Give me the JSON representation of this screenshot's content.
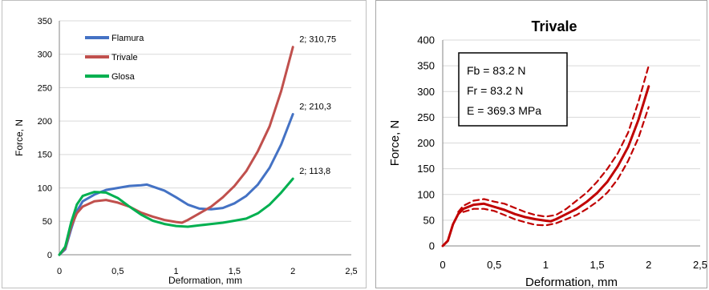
{
  "chart_data": [
    {
      "type": "line",
      "title": "",
      "xlabel": "Deformation, mm",
      "ylabel": "Force, N",
      "xlim": [
        0,
        2.5
      ],
      "ylim": [
        0,
        350
      ],
      "x_ticks": [
        "0",
        "0,5",
        "1",
        "1,5",
        "2",
        "2,5"
      ],
      "y_ticks": [
        "0",
        "50",
        "100",
        "150",
        "200",
        "250",
        "300",
        "350"
      ],
      "grid": "horizontal",
      "legend_position": "top-left",
      "series": [
        {
          "name": "Flamura",
          "color": "#4472c4",
          "points": [
            [
              0,
              0
            ],
            [
              0.05,
              8
            ],
            [
              0.1,
              38
            ],
            [
              0.15,
              65
            ],
            [
              0.2,
              80
            ],
            [
              0.3,
              90
            ],
            [
              0.4,
              97
            ],
            [
              0.5,
              100
            ],
            [
              0.6,
              103
            ],
            [
              0.7,
              104
            ],
            [
              0.75,
              105
            ],
            [
              0.8,
              102
            ],
            [
              0.9,
              96
            ],
            [
              1.0,
              86
            ],
            [
              1.1,
              75
            ],
            [
              1.2,
              69
            ],
            [
              1.3,
              68
            ],
            [
              1.4,
              70
            ],
            [
              1.5,
              77
            ],
            [
              1.6,
              88
            ],
            [
              1.7,
              105
            ],
            [
              1.8,
              130
            ],
            [
              1.9,
              165
            ],
            [
              2.0,
              210.3
            ]
          ],
          "end_label": "2; 210,3"
        },
        {
          "name": "Trivale",
          "color": "#c0504d",
          "points": [
            [
              0,
              0
            ],
            [
              0.05,
              10
            ],
            [
              0.1,
              42
            ],
            [
              0.15,
              62
            ],
            [
              0.2,
              72
            ],
            [
              0.3,
              80
            ],
            [
              0.4,
              82
            ],
            [
              0.5,
              78
            ],
            [
              0.6,
              72
            ],
            [
              0.7,
              63
            ],
            [
              0.8,
              57
            ],
            [
              0.9,
              52
            ],
            [
              1.0,
              49
            ],
            [
              1.05,
              48
            ],
            [
              1.1,
              52
            ],
            [
              1.2,
              62
            ],
            [
              1.3,
              72
            ],
            [
              1.4,
              86
            ],
            [
              1.5,
              103
            ],
            [
              1.6,
              125
            ],
            [
              1.7,
              155
            ],
            [
              1.8,
              192
            ],
            [
              1.9,
              245
            ],
            [
              2.0,
              310.75
            ]
          ],
          "end_label": "2; 310,75"
        },
        {
          "name": "Glosa",
          "color": "#00b050",
          "points": [
            [
              0,
              0
            ],
            [
              0.05,
              12
            ],
            [
              0.1,
              48
            ],
            [
              0.15,
              75
            ],
            [
              0.2,
              88
            ],
            [
              0.3,
              94
            ],
            [
              0.4,
              93
            ],
            [
              0.5,
              85
            ],
            [
              0.6,
              72
            ],
            [
              0.7,
              60
            ],
            [
              0.8,
              51
            ],
            [
              0.9,
              46
            ],
            [
              1.0,
              43
            ],
            [
              1.1,
              42
            ],
            [
              1.2,
              44
            ],
            [
              1.3,
              46
            ],
            [
              1.4,
              48
            ],
            [
              1.5,
              51
            ],
            [
              1.6,
              54
            ],
            [
              1.7,
              62
            ],
            [
              1.8,
              75
            ],
            [
              1.9,
              93
            ],
            [
              2.0,
              113.8
            ]
          ],
          "end_label": "2; 113,8"
        }
      ]
    },
    {
      "type": "line",
      "title": "Trivale",
      "xlabel": "Deformation, mm",
      "ylabel": "Force, N",
      "xlim": [
        0,
        2.5
      ],
      "ylim": [
        0,
        400
      ],
      "x_ticks": [
        "0",
        "0,5",
        "1",
        "1,5",
        "2",
        "2,5"
      ],
      "y_ticks": [
        "0",
        "50",
        "100",
        "150",
        "200",
        "250",
        "300",
        "350",
        "400"
      ],
      "grid": "horizontal",
      "annotation_box": [
        "Fb = 83.2 N",
        "Fr = 83.2  N",
        "E = 369.3 MPa"
      ],
      "series": [
        {
          "style": "solid",
          "color": "#c00000",
          "points": [
            [
              0,
              0
            ],
            [
              0.05,
              10
            ],
            [
              0.1,
              42
            ],
            [
              0.15,
              62
            ],
            [
              0.2,
              72
            ],
            [
              0.3,
              80
            ],
            [
              0.4,
              82
            ],
            [
              0.5,
              76
            ],
            [
              0.6,
              70
            ],
            [
              0.7,
              62
            ],
            [
              0.8,
              56
            ],
            [
              0.9,
              52
            ],
            [
              1.0,
              49
            ],
            [
              1.05,
              48
            ],
            [
              1.1,
              52
            ],
            [
              1.2,
              62
            ],
            [
              1.3,
              72
            ],
            [
              1.4,
              86
            ],
            [
              1.5,
              103
            ],
            [
              1.6,
              125
            ],
            [
              1.7,
              155
            ],
            [
              1.8,
              192
            ],
            [
              1.9,
              245
            ],
            [
              2.0,
              310
            ]
          ]
        },
        {
          "style": "dashed",
          "color": "#c00000",
          "points": [
            [
              0.15,
              66
            ],
            [
              0.2,
              78
            ],
            [
              0.3,
              88
            ],
            [
              0.4,
              91
            ],
            [
              0.5,
              86
            ],
            [
              0.6,
              82
            ],
            [
              0.7,
              74
            ],
            [
              0.8,
              66
            ],
            [
              0.9,
              60
            ],
            [
              1.0,
              57
            ],
            [
              1.1,
              60
            ],
            [
              1.2,
              72
            ],
            [
              1.3,
              88
            ],
            [
              1.4,
              104
            ],
            [
              1.5,
              125
            ],
            [
              1.6,
              150
            ],
            [
              1.7,
              180
            ],
            [
              1.8,
              220
            ],
            [
              1.9,
              280
            ],
            [
              2.0,
              350
            ]
          ]
        },
        {
          "style": "dashed",
          "color": "#c00000",
          "points": [
            [
              0.2,
              66
            ],
            [
              0.3,
              72
            ],
            [
              0.4,
              72
            ],
            [
              0.5,
              68
            ],
            [
              0.6,
              60
            ],
            [
              0.7,
              52
            ],
            [
              0.8,
              46
            ],
            [
              0.9,
              41
            ],
            [
              1.0,
              40
            ],
            [
              1.1,
              44
            ],
            [
              1.2,
              52
            ],
            [
              1.3,
              60
            ],
            [
              1.4,
              72
            ],
            [
              1.5,
              86
            ],
            [
              1.6,
              104
            ],
            [
              1.7,
              130
            ],
            [
              1.8,
              165
            ],
            [
              1.9,
              210
            ],
            [
              2.0,
              270
            ]
          ]
        }
      ]
    }
  ]
}
